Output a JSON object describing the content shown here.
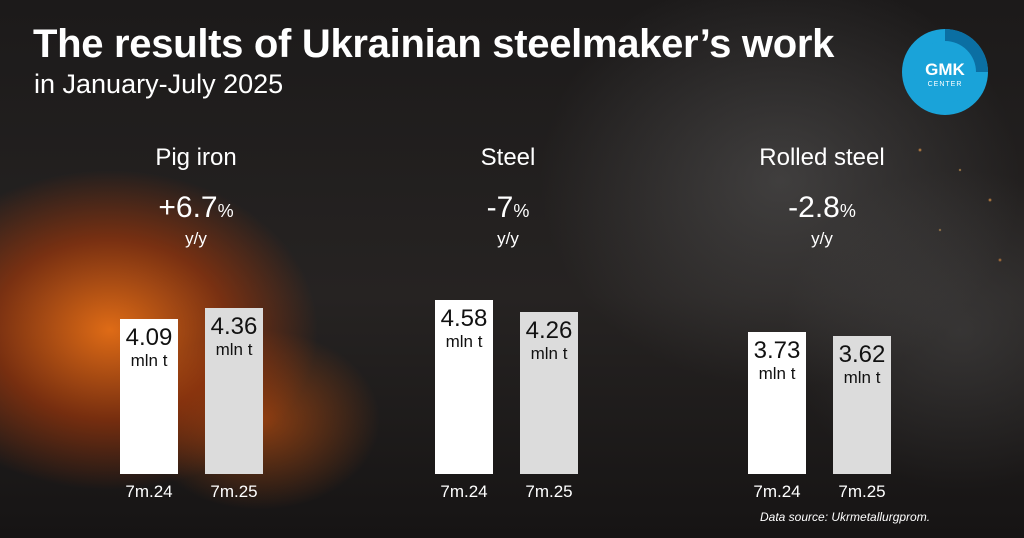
{
  "title": "The results of Ukrainian steelmaker’s work",
  "subtitle": "in January-July 2025",
  "logo": {
    "main": "GMK",
    "sub": "CENTER"
  },
  "source": "Data source: Ukrmetallurgprom.",
  "colors": {
    "bar_prev": "#ffffff",
    "bar_curr": "#dcdcdc",
    "logo_ring": "#1aa3d9"
  },
  "panels": [
    {
      "name": "Pig iron",
      "change": "+6.7",
      "pct": "%",
      "yoy": "y/y"
    },
    {
      "name": "Steel",
      "change": "-7",
      "pct": "%",
      "yoy": "y/y"
    },
    {
      "name": "Rolled steel",
      "change": "-2.8",
      "pct": "%",
      "yoy": "y/y"
    }
  ],
  "chart_data": [
    {
      "type": "bar",
      "title": "Pig iron",
      "categories": [
        "7m.24",
        "7m.25"
      ],
      "values": [
        4.09,
        4.36
      ],
      "value_labels": [
        "4.09",
        "4.36"
      ],
      "unit": "mln t",
      "ylim": [
        0,
        4.8
      ]
    },
    {
      "type": "bar",
      "title": "Steel",
      "categories": [
        "7m.24",
        "7m.25"
      ],
      "values": [
        4.58,
        4.26
      ],
      "value_labels": [
        "4.58",
        "4.26"
      ],
      "unit": "mln t",
      "ylim": [
        0,
        4.8
      ]
    },
    {
      "type": "bar",
      "title": "Rolled steel",
      "categories": [
        "7m.24",
        "7m.25"
      ],
      "values": [
        3.73,
        3.62
      ],
      "value_labels": [
        "3.73",
        "3.62"
      ],
      "unit": "mln t",
      "ylim": [
        0,
        4.8
      ]
    }
  ]
}
